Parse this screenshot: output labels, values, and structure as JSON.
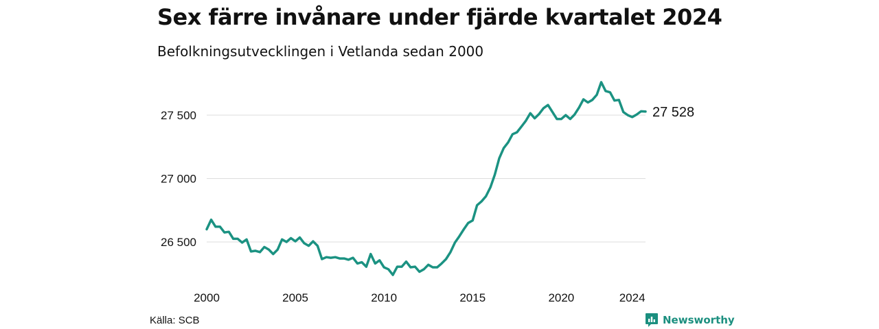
{
  "header": {
    "title": "Sex färre invånare under fjärde kvartalet 2024",
    "subtitle": "Befolkningsutvecklingen i Vetlanda sedan 2000"
  },
  "footer": {
    "source": "Källa: SCB",
    "brand": "Newsworthy",
    "brand_icon": "newsworthy-logo-icon"
  },
  "colors": {
    "line": "#1b9282",
    "grid": "#dddddd",
    "brand": "#1b8f7f"
  },
  "chart_data": {
    "type": "line",
    "title": "Sex färre invånare under fjärde kvartalet 2024",
    "subtitle": "Befolkningsutvecklingen i Vetlanda sedan 2000",
    "xlabel": "",
    "ylabel": "",
    "x_ticks": [
      2000,
      2005,
      2010,
      2015,
      2020,
      2024
    ],
    "y_ticks": [
      26500,
      27000,
      27500
    ],
    "y_tick_labels": [
      "26 500",
      "27 000",
      "27 500"
    ],
    "ylim": [
      26200,
      27850
    ],
    "xlim": [
      2000.0,
      2024.75
    ],
    "grid": "horizontal",
    "last_value_label": "27 528",
    "series": [
      {
        "x": [
          2000.0,
          2000.25,
          2000.5,
          2000.75,
          2001.0,
          2001.25,
          2001.5,
          2001.75,
          2002.0,
          2002.25,
          2002.5,
          2002.75,
          2003.0,
          2003.25,
          2003.5,
          2003.75,
          2004.0,
          2004.25,
          2004.5,
          2004.75,
          2005.0,
          2005.25,
          2005.5,
          2005.75,
          2006.0,
          2006.25,
          2006.5,
          2006.75,
          2007.0,
          2007.25,
          2007.5,
          2007.75,
          2008.0,
          2008.25,
          2008.5,
          2008.75,
          2009.0,
          2009.25,
          2009.5,
          2009.75,
          2010.0,
          2010.25,
          2010.5,
          2010.75,
          2011.0,
          2011.25,
          2011.5,
          2011.75,
          2012.0,
          2012.25,
          2012.5,
          2012.75,
          2013.0,
          2013.25,
          2013.5,
          2013.75,
          2014.0,
          2014.25,
          2014.5,
          2014.75,
          2015.0,
          2015.25,
          2015.5,
          2015.75,
          2016.0,
          2016.25,
          2016.5,
          2016.75,
          2017.0,
          2017.25,
          2017.5,
          2017.75,
          2018.0,
          2018.25,
          2018.5,
          2018.75,
          2019.0,
          2019.25,
          2019.5,
          2019.75,
          2020.0,
          2020.25,
          2020.5,
          2020.75,
          2021.0,
          2021.25,
          2021.5,
          2021.75,
          2022.0,
          2022.25,
          2022.5,
          2022.75,
          2023.0,
          2023.25,
          2023.5,
          2023.75,
          2024.0,
          2024.25,
          2024.5,
          2024.75
        ],
        "values": [
          26600,
          26675,
          26620,
          26620,
          26575,
          26580,
          26525,
          26525,
          26495,
          26520,
          26425,
          26430,
          26420,
          26460,
          26440,
          26405,
          26440,
          26520,
          26500,
          26530,
          26505,
          26535,
          26490,
          26470,
          26505,
          26470,
          26365,
          26380,
          26375,
          26380,
          26370,
          26370,
          26360,
          26375,
          26330,
          26340,
          26305,
          26405,
          26330,
          26355,
          26300,
          26285,
          26240,
          26305,
          26305,
          26345,
          26300,
          26305,
          26265,
          26285,
          26320,
          26300,
          26300,
          26330,
          26365,
          26420,
          26495,
          26545,
          26600,
          26650,
          26670,
          26790,
          26820,
          26860,
          26930,
          27030,
          27160,
          27240,
          27285,
          27350,
          27365,
          27410,
          27455,
          27515,
          27475,
          27510,
          27555,
          27580,
          27525,
          27470,
          27470,
          27500,
          27470,
          27505,
          27560,
          27625,
          27600,
          27620,
          27660,
          27760,
          27690,
          27680,
          27615,
          27620,
          27525,
          27500,
          27485,
          27505,
          27530,
          27528
        ]
      }
    ]
  }
}
